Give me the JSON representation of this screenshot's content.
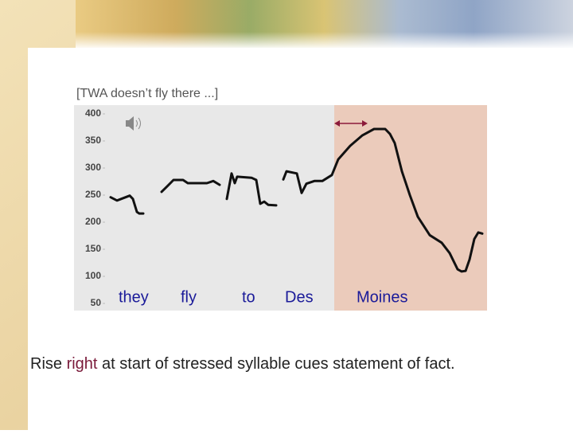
{
  "chart_data": {
    "type": "line",
    "title": "[TWA doesn’t fly there ...]",
    "xlim": [
      -45,
      474
    ],
    "ylim": [
      50,
      400
    ],
    "yticks": [
      50,
      100,
      150,
      200,
      250,
      300,
      350,
      400
    ],
    "highlight_xrange": [
      282,
      474
    ],
    "highlight_color": "#ebcbbb",
    "background_color": "#e8e8e8",
    "arrow_xrange": [
      282,
      324
    ],
    "arrow_color": "#8b1a3a",
    "word_labels": [
      "they",
      "fly",
      "to",
      "Des",
      "Moines"
    ],
    "word_color": "#1a1a99",
    "x": [
      1,
      9,
      25,
      29,
      34,
      37,
      42,
      null,
      65,
      72,
      80,
      92,
      98,
      122,
      130,
      138,
      null,
      147,
      153,
      157,
      160,
      178,
      184,
      189,
      194,
      199,
      209,
      null,
      218,
      222,
      235,
      241,
      247,
      257,
      267,
      279,
      287,
      302,
      317,
      332,
      346,
      352,
      358,
      367,
      377,
      387,
      402,
      417,
      427,
      437,
      442,
      447,
      452,
      458,
      463,
      468
    ],
    "series": [
      {
        "color": "#111111",
        "values": [
          246,
          240,
          249,
          243,
          219,
          216,
          216,
          null,
          256,
          266,
          278,
          278,
          272,
          272,
          276,
          269,
          null,
          243,
          290,
          272,
          284,
          282,
          278,
          234,
          238,
          232,
          231,
          null,
          279,
          294,
          290,
          254,
          271,
          276,
          276,
          287,
          316,
          341,
          360,
          372,
          372,
          363,
          346,
          294,
          250,
          210,
          176,
          162,
          143,
          113,
          109,
          110,
          131,
          169,
          181,
          179
        ]
      }
    ]
  },
  "caption": {
    "parts": [
      "Rise",
      "right",
      "at start of stressed syllable cues statement of fact."
    ],
    "highlight_color": "#7a1a3a"
  }
}
